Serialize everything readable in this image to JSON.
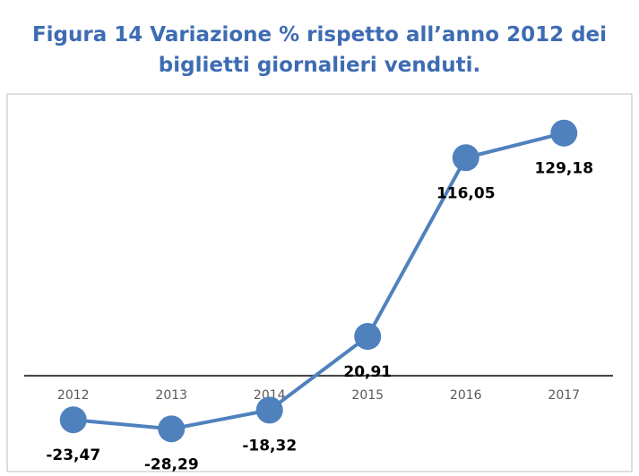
{
  "chart_data": {
    "type": "line",
    "title": "Figura 14 Variazione % rispetto all’anno 2012 dei biglietti giornalieri venduti.",
    "categories": [
      "2012",
      "2013",
      "2014",
      "2015",
      "2016",
      "2017"
    ],
    "series": [
      {
        "name": "Variazione %",
        "color": "#4f81bd",
        "values": [
          -23.47,
          -28.29,
          -18.32,
          20.91,
          116.05,
          129.18
        ],
        "value_labels": [
          "-23,47",
          "-28,29",
          "-18,32",
          "20,91",
          "116,05",
          "129,18"
        ]
      }
    ],
    "ylim": [
      -51,
      150
    ],
    "legend": false,
    "grid": false
  }
}
